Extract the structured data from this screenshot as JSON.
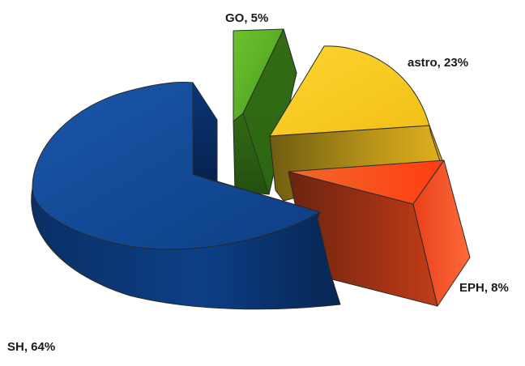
{
  "chart_data": {
    "type": "pie",
    "title": "",
    "three_d": true,
    "exploded": true,
    "legend": "none",
    "slices": [
      {
        "label": "SH",
        "value": 64,
        "label_text": "SH, 64%",
        "color": "#0d3f86"
      },
      {
        "label": "GO",
        "value": 5,
        "label_text": "GO, 5%",
        "color": "#4a9c1e"
      },
      {
        "label": "astro",
        "value": 23,
        "label_text": "astro, 23%",
        "color": "#f5c81e"
      },
      {
        "label": "EPH",
        "value": 8,
        "label_text": "EPH, 8%",
        "color": "#e8401a"
      }
    ]
  }
}
